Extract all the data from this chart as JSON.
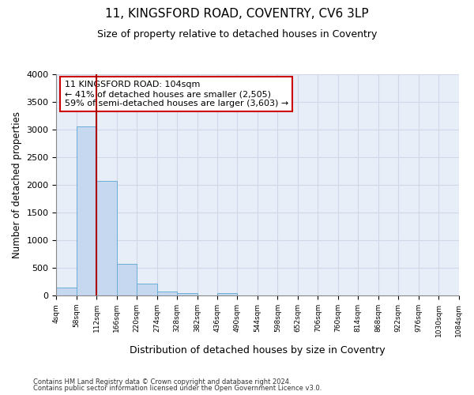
{
  "title_line1": "11, KINGSFORD ROAD, COVENTRY, CV6 3LP",
  "title_line2": "Size of property relative to detached houses in Coventry",
  "xlabel": "Distribution of detached houses by size in Coventry",
  "ylabel": "Number of detached properties",
  "footer_line1": "Contains HM Land Registry data © Crown copyright and database right 2024.",
  "footer_line2": "Contains public sector information licensed under the Open Government Licence v3.0.",
  "bar_edges": [
    4,
    58,
    112,
    166,
    220,
    274,
    328,
    382,
    436,
    490,
    544,
    598,
    652,
    706,
    760,
    814,
    868,
    922,
    976,
    1030,
    1084
  ],
  "bar_heights": [
    150,
    3060,
    2070,
    570,
    210,
    65,
    50,
    0,
    50,
    0,
    0,
    0,
    0,
    0,
    0,
    0,
    0,
    0,
    0,
    0
  ],
  "bar_color": "#c5d8f0",
  "bar_edge_color": "#6baed6",
  "vline_x": 112,
  "vline_color": "#aa0000",
  "annotation_text": "11 KINGSFORD ROAD: 104sqm\n← 41% of detached houses are smaller (2,505)\n59% of semi-detached houses are larger (3,603) →",
  "annotation_box_color": "#ffffff",
  "annotation_box_edge": "#cc0000",
  "ylim": [
    0,
    4000
  ],
  "yticks": [
    0,
    500,
    1000,
    1500,
    2000,
    2500,
    3000,
    3500,
    4000
  ],
  "grid_color": "#d0d8e8",
  "bg_color": "#ffffff",
  "plot_bg_color": "#e8eef8"
}
